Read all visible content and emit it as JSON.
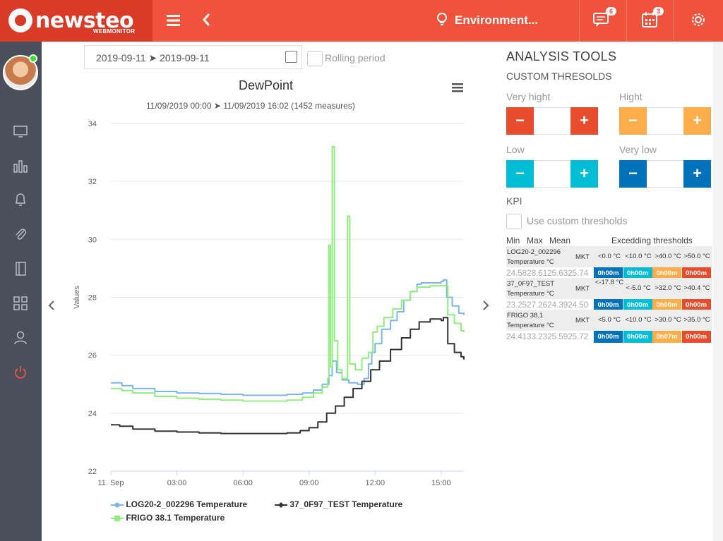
{
  "app": {
    "logo_text": "newsteo",
    "logo_sub": "WEBMONITOR",
    "environment": "Environment...",
    "messages_badge": "6",
    "calendar_badge": "3"
  },
  "filters": {
    "date_range": "2019-09-11 ➤ 2019-09-11",
    "rolling_label": "Rolling period"
  },
  "chart_data": {
    "type": "line",
    "title": "DewPoint",
    "subtitle": "11/09/2019 00:00 ➤ 11/09/2019 16:02 (1452 measures)",
    "ylabel": "Values",
    "ylim": [
      22,
      34
    ],
    "yticks": [
      "22",
      "24",
      "26",
      "28",
      "30",
      "32",
      "34"
    ],
    "xticks": [
      "11. Sep",
      "03:00",
      "06:00",
      "09:00",
      "12:00",
      "15:00"
    ],
    "xrange_hours": [
      0,
      16.03
    ],
    "series": [
      {
        "name": "LOG20-2_002296 Temperature",
        "color": "#7cb5ec",
        "points": [
          [
            0,
            25.05
          ],
          [
            0.5,
            24.95
          ],
          [
            1,
            24.85
          ],
          [
            2,
            24.75
          ],
          [
            3,
            24.7
          ],
          [
            4,
            24.68
          ],
          [
            5,
            24.65
          ],
          [
            6,
            24.62
          ],
          [
            7,
            24.62
          ],
          [
            8,
            24.65
          ],
          [
            8.7,
            24.7
          ],
          [
            9.2,
            24.8
          ],
          [
            9.6,
            25.0
          ],
          [
            9.9,
            25.3
          ],
          [
            10.05,
            25.8
          ],
          [
            10.25,
            25.4
          ],
          [
            10.5,
            25.15
          ],
          [
            10.8,
            25.05
          ],
          [
            11.2,
            25.0
          ],
          [
            11.5,
            25.2
          ],
          [
            11.7,
            25.7
          ],
          [
            11.85,
            26.1
          ],
          [
            12.0,
            26.4
          ],
          [
            12.3,
            26.9
          ],
          [
            12.7,
            27.2
          ],
          [
            13.0,
            27.5
          ],
          [
            13.3,
            27.9
          ],
          [
            13.6,
            28.2
          ],
          [
            13.9,
            28.45
          ],
          [
            14.1,
            28.5
          ],
          [
            14.5,
            28.5
          ],
          [
            15.0,
            28.55
          ],
          [
            15.1,
            28.6
          ],
          [
            15.25,
            28.0
          ],
          [
            15.5,
            27.7
          ],
          [
            15.8,
            27.45
          ],
          [
            16.03,
            27.4
          ]
        ]
      },
      {
        "name": "37_0F97_TEST Temperature",
        "color": "#333333",
        "points": [
          [
            0,
            23.6
          ],
          [
            0.4,
            23.55
          ],
          [
            1,
            23.45
          ],
          [
            2,
            23.38
          ],
          [
            3,
            23.35
          ],
          [
            4,
            23.32
          ],
          [
            5,
            23.3
          ],
          [
            6,
            23.3
          ],
          [
            7,
            23.3
          ],
          [
            8,
            23.32
          ],
          [
            8.6,
            23.4
          ],
          [
            9,
            23.5
          ],
          [
            9.4,
            23.7
          ],
          [
            9.8,
            24.0
          ],
          [
            10.2,
            24.25
          ],
          [
            10.6,
            24.55
          ],
          [
            11,
            24.85
          ],
          [
            11.4,
            25.1
          ],
          [
            11.8,
            25.5
          ],
          [
            12.2,
            25.8
          ],
          [
            12.7,
            26.2
          ],
          [
            13.2,
            26.6
          ],
          [
            13.6,
            26.9
          ],
          [
            14,
            27.15
          ],
          [
            14.5,
            27.25
          ],
          [
            15,
            27.2
          ],
          [
            15.1,
            27.3
          ],
          [
            15.3,
            26.4
          ],
          [
            15.6,
            26.1
          ],
          [
            15.9,
            25.95
          ],
          [
            16.03,
            25.85
          ]
        ]
      },
      {
        "name": "FRIGO 38.1 Temperature",
        "color": "#90ed7d",
        "points": [
          [
            0,
            24.85
          ],
          [
            0.5,
            24.78
          ],
          [
            1,
            24.7
          ],
          [
            2,
            24.58
          ],
          [
            3,
            24.52
          ],
          [
            4,
            24.48
          ],
          [
            5,
            24.45
          ],
          [
            6,
            24.42
          ],
          [
            7,
            24.42
          ],
          [
            8,
            24.45
          ],
          [
            8.7,
            24.55
          ],
          [
            9.2,
            24.7
          ],
          [
            9.6,
            24.9
          ],
          [
            9.85,
            25.2
          ],
          [
            9.9,
            29.8
          ],
          [
            9.97,
            25.6
          ],
          [
            10.05,
            33.2
          ],
          [
            10.15,
            26.5
          ],
          [
            10.3,
            25.5
          ],
          [
            10.5,
            25.2
          ],
          [
            10.65,
            25.2
          ],
          [
            10.75,
            30.8
          ],
          [
            10.85,
            25.7
          ],
          [
            11.1,
            25.5
          ],
          [
            11.4,
            25.9
          ],
          [
            11.7,
            26.1
          ],
          [
            11.9,
            26.8
          ],
          [
            12.1,
            27.0
          ],
          [
            12.4,
            27.3
          ],
          [
            12.8,
            27.6
          ],
          [
            13.2,
            27.9
          ],
          [
            13.6,
            28.2
          ],
          [
            13.9,
            28.35
          ],
          [
            14.5,
            28.4
          ],
          [
            15.0,
            28.4
          ],
          [
            15.15,
            28.4
          ],
          [
            15.3,
            27.4
          ],
          [
            15.6,
            27.1
          ],
          [
            15.9,
            26.85
          ],
          [
            16.03,
            26.8
          ]
        ]
      }
    ]
  },
  "tools": {
    "title": "ANALYSIS TOOLS",
    "subtitle": "CUSTOM THRESOLDS",
    "very_high": "Very hight",
    "high": "Hight",
    "low": "Low",
    "very_low": "Very low",
    "kpi": "KPI",
    "use_custom": "Use custom thresholds",
    "colors": {
      "very_high": "#e74c2d",
      "high": "#ffad4a",
      "low": "#00bcd4",
      "very_low": "#0072bc"
    }
  },
  "kpi": {
    "col_min": "Min",
    "col_max": "Max",
    "col_mean": "Mean",
    "col_exceed": "Excedding thresholds",
    "col_mkt": "MKT",
    "rows": [
      {
        "name1": "LOG20-2_002296",
        "name2": "Temperature °C",
        "min": "24.58",
        "max": "28.61",
        "mean": "25.63",
        "mkt": "25.74",
        "t1": "<0.0 °C",
        "t2": "<10.0 °C",
        "t3": ">40.0 °C",
        "t4": ">50.0 °C",
        "d1": "0h00m",
        "d2": "0h00m",
        "d3": "0h00m",
        "d4": "0h00m"
      },
      {
        "name1": "37_0F97_TEST",
        "name2": "Temperature °C",
        "min": "23.25",
        "max": "27.26",
        "mean": "24.39",
        "mkt": "24.50",
        "t1": "<-17.8 °C",
        "t2": "<-5.0 °C",
        "t3": ">32.0 °C",
        "t4": ">40.4 °C",
        "d1": "0h00m",
        "d2": "0h00m",
        "d3": "0h00m",
        "d4": "0h00m"
      },
      {
        "name1": "FRIGO 38.1",
        "name2": "Temperature °C",
        "min": "24.41",
        "max": "33.23",
        "mean": "25.59",
        "mkt": "25.72",
        "t1": "<5.0 °C",
        "t2": "<10.0 °C",
        "t3": ">30.0 °C",
        "t4": ">35.0 °C",
        "d1": "0h00m",
        "d2": "0h00m",
        "d3": "0h07m",
        "d4": "0h00m"
      }
    ]
  }
}
